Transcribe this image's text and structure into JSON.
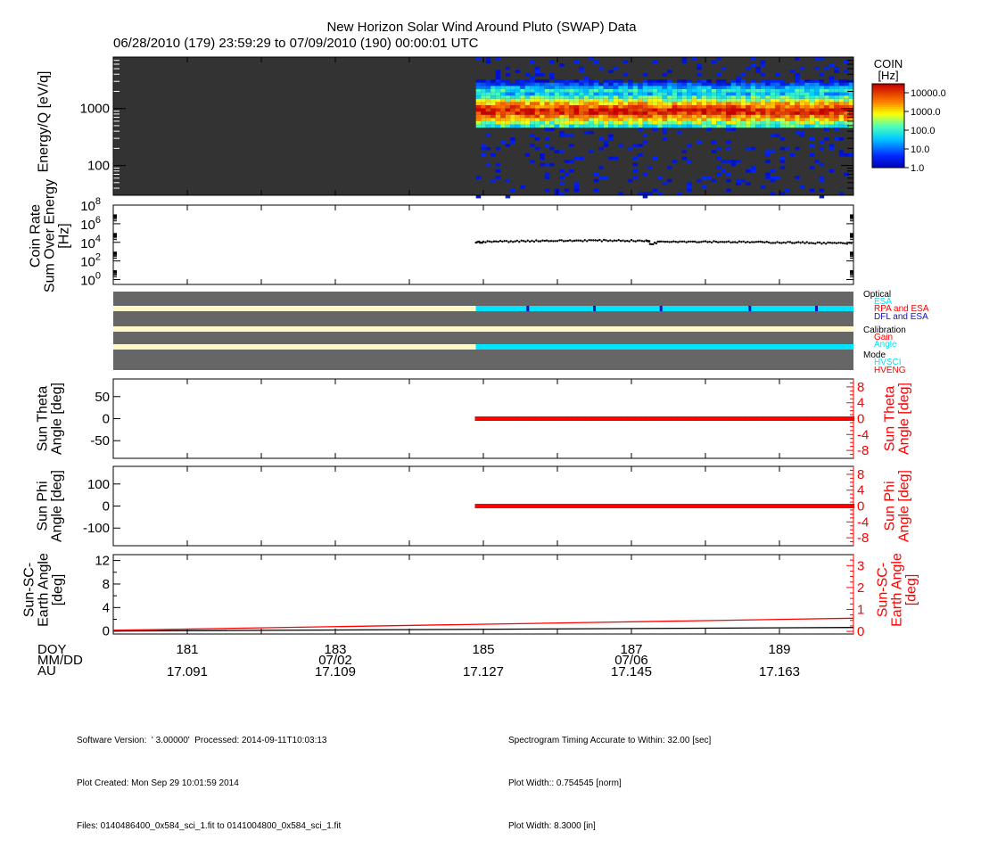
{
  "title": "New Horizon Solar Wind Around Pluto (SWAP) Data",
  "subtitle": "06/28/2010 (179) 23:59:29 to 07/09/2010 (190) 00:00:01 UTC",
  "colors": {
    "background_gray": "#333333",
    "panel_gray": "#666666",
    "cream": "#fff8c8",
    "cyan": "#00e5ff",
    "blue": "#1010c8",
    "red": "#ff0000",
    "black": "#000000"
  },
  "chart_data": [
    {
      "type": "heatmap",
      "name": "spectrogram",
      "ylabel": "Energy/Q [eV/q]",
      "yscale": "log",
      "ylim": [
        30,
        8000
      ],
      "xlim": [
        180,
        190
      ],
      "data_start_doy": 184.9,
      "yticks": [
        "1000",
        "100"
      ],
      "colorbar": {
        "title": "COIN",
        "unit": "[Hz]",
        "scale": "log",
        "range": [
          1,
          30000
        ],
        "ticks": [
          "10000.0",
          "1000.0",
          "100.0",
          "10.0",
          "1.0"
        ]
      },
      "band": {
        "peak_energy": 900,
        "upper_energy": 2000,
        "lower_energy": 600
      }
    },
    {
      "type": "scatter",
      "name": "coin-rate",
      "ylabel_lines": [
        "Coin Rate",
        "Sum Over Energy",
        "[Hz]"
      ],
      "yscale": "log",
      "ylim": [
        0.3,
        100000000
      ],
      "yticks": [
        {
          "base": "10",
          "exp": "8"
        },
        {
          "base": "10",
          "exp": "6"
        },
        {
          "base": "10",
          "exp": "4"
        },
        {
          "base": "10",
          "exp": "2"
        },
        {
          "base": "10",
          "exp": "0"
        }
      ],
      "x": [
        184.9,
        185.0,
        185.2,
        185.4,
        185.6,
        185.8,
        186.0,
        186.2,
        186.4,
        186.6,
        186.8,
        187.0,
        187.2,
        187.25,
        187.4,
        187.6,
        187.8,
        188.0,
        188.2,
        188.4,
        188.6,
        188.8,
        189.0,
        189.2,
        189.4,
        189.6,
        189.8,
        190.0
      ],
      "y": [
        10000,
        11000,
        12500,
        13000,
        14000,
        15000,
        14500,
        15000,
        16000,
        15500,
        16000,
        15000,
        14000,
        6000,
        13000,
        12500,
        12000,
        12000,
        11500,
        11000,
        10500,
        10000,
        10000,
        9500,
        9000,
        8500,
        8000,
        7500
      ]
    },
    {
      "type": "table",
      "name": "status-bars",
      "labels": [
        {
          "text": "Optical",
          "color": "#000000"
        },
        {
          "text": "ESA",
          "color": "#00e5ff"
        },
        {
          "text": "RPA and ESA",
          "color": "#ff0000"
        },
        {
          "text": "DFL and ESA",
          "color": "#1010c8"
        },
        {
          "text": "Calibration",
          "color": "#000000"
        },
        {
          "text": "Gain",
          "color": "#ff0000"
        },
        {
          "text": "Angle",
          "color": "#00e5ff"
        },
        {
          "text": "Mode",
          "color": "#000000"
        },
        {
          "text": "HVSCI",
          "color": "#00e5ff"
        },
        {
          "text": "HVENG",
          "color": "#ff0000"
        }
      ],
      "bars": [
        {
          "row": "optical",
          "segments": [
            {
              "from": 180,
              "to": 184.9,
              "color": "#fff8c8"
            },
            {
              "from": 184.9,
              "to": 190,
              "color": "#00e5ff"
            }
          ],
          "ticks": [
            185.6,
            186.5,
            187.4,
            188.6,
            189.5
          ]
        },
        {
          "row": "calibration",
          "segments": [
            {
              "from": 180,
              "to": 190,
              "color": "#fff8c8"
            }
          ],
          "ticks": []
        },
        {
          "row": "mode",
          "segments": [
            {
              "from": 180,
              "to": 184.9,
              "color": "#fff8c8"
            },
            {
              "from": 184.9,
              "to": 190,
              "color": "#00e5ff"
            }
          ],
          "ticks": []
        }
      ]
    },
    {
      "type": "scatter",
      "name": "sun-theta",
      "ylabel_lines": [
        "Sun Theta",
        "Angle [deg]"
      ],
      "ylabel_right_lines": [
        "Sun Theta",
        "Angle [deg]"
      ],
      "ylim": [
        -90,
        90
      ],
      "yticks": [
        "50",
        "0",
        "-50"
      ],
      "ylim_right": [
        -10,
        10
      ],
      "yticks_right": [
        "8",
        "4",
        "0",
        "-4",
        "-8"
      ],
      "x_range": [
        184.9,
        190
      ],
      "value": 0,
      "color": "#ff0000"
    },
    {
      "type": "scatter",
      "name": "sun-phi",
      "ylabel_lines": [
        "Sun Phi",
        "Angle [deg]"
      ],
      "ylabel_right_lines": [
        "Sun Phi",
        "Angle [deg]"
      ],
      "ylim": [
        -180,
        180
      ],
      "yticks": [
        "100",
        "0",
        "-100"
      ],
      "ylim_right": [
        -10,
        10
      ],
      "yticks_right": [
        "8",
        "4",
        "0",
        "-4",
        "-8"
      ],
      "x_range": [
        184.9,
        190
      ],
      "value": 0,
      "color": "#ff0000"
    },
    {
      "type": "line",
      "name": "sun-sc-earth",
      "ylabel_lines": [
        "Sun-SC-",
        "Earth Angle",
        "[deg]"
      ],
      "ylabel_right_lines": [
        "Sun-SC-",
        "Earth Angle",
        "[deg]"
      ],
      "ylim": [
        -0.5,
        13
      ],
      "yticks": [
        "12",
        "8",
        "4",
        "0"
      ],
      "ylim_right": [
        -0.12,
        3.5
      ],
      "yticks_right": [
        "3",
        "2",
        "1",
        "0"
      ],
      "series": [
        {
          "axis": "left",
          "color": "#000000",
          "x": [
            180,
            190
          ],
          "y": [
            0.0,
            0.6
          ]
        },
        {
          "axis": "right",
          "color": "#ff0000",
          "x": [
            180,
            190
          ],
          "y": [
            0.05,
            0.6
          ]
        }
      ]
    }
  ],
  "x_axis": {
    "range": [
      180,
      190
    ],
    "row_labels": [
      "DOY",
      "MM/DD",
      "AU"
    ],
    "ticks": [
      {
        "doy": 181,
        "label": "181",
        "date": "",
        "au": "17.091"
      },
      {
        "doy": 183,
        "label": "183",
        "date": "07/02",
        "au": "17.109"
      },
      {
        "doy": 185,
        "label": "185",
        "date": "",
        "au": "17.127"
      },
      {
        "doy": 187,
        "label": "187",
        "date": "07/06",
        "au": "17.145"
      },
      {
        "doy": 189,
        "label": "189",
        "date": "",
        "au": "17.163"
      }
    ]
  },
  "footer": {
    "software": "Software Version:  ' 3.00000'  Processed: 2014-09-11T10:03:13",
    "created": "Plot Created: Mon Sep 29 10:01:59 2014",
    "files": "Files: 0140486400_0x584_sci_1.fit to 0141004800_0x584_sci_1.fit",
    "timing": "Spectrogram Timing Accurate to Within: 32.00 [sec]",
    "width_norm": "Plot Width:: 0.754545 [norm]",
    "width_in": "Plot Width: 8.3000 [in]"
  }
}
